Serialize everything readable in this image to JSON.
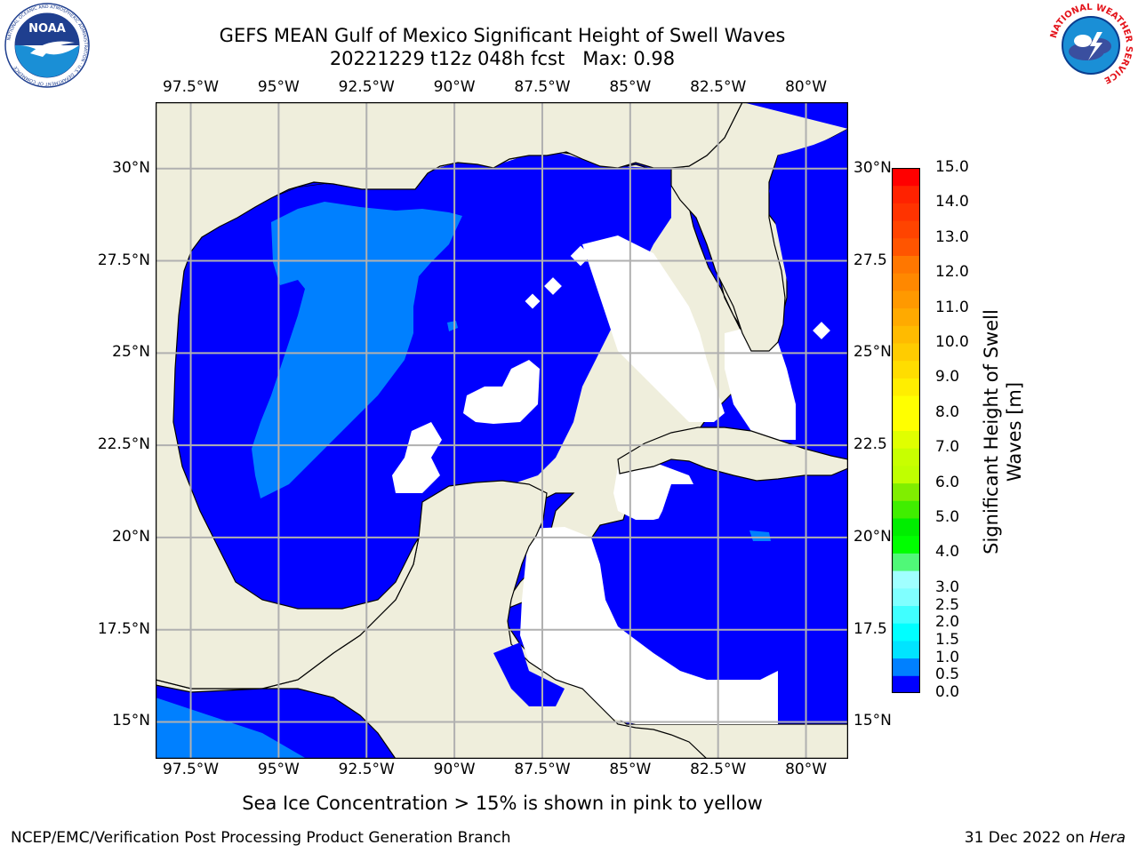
{
  "title_line1": "GEFS MEAN Gulf of Mexico Significant Height of Swell Waves",
  "title_line2": "20221229 t12z 048h fcst   Max: 0.98",
  "note": "Sea Ice Concentration > 15% is shown in pink to yellow",
  "footer_left": "NCEP/EMC/Verification Post Processing Product Generation Branch",
  "footer_date": "31 Dec 2022 on ",
  "footer_host": "Hera",
  "left_logo": {
    "icon": "noaa-logo-icon",
    "text": "NOAA",
    "ring_text": "NATIONAL OCEANIC AND ATMOSPHERIC ADMINISTRATION · U.S. DEPARTMENT OF COMMERCE"
  },
  "right_logo": {
    "icon": "national-weather-service-logo-icon",
    "ring_text": "NATIONAL WEATHER SERVICE"
  },
  "map": {
    "lon_range": [
      -98.5,
      -78.8
    ],
    "lat_range": [
      14.0,
      31.8
    ],
    "lon_ticks": [
      {
        "value": -97.5,
        "label": "97.5°W"
      },
      {
        "value": -95,
        "label": "95°W"
      },
      {
        "value": -92.5,
        "label": "92.5°W"
      },
      {
        "value": -90,
        "label": "90°W"
      },
      {
        "value": -87.5,
        "label": "87.5°W"
      },
      {
        "value": -85,
        "label": "85°W"
      },
      {
        "value": -82.5,
        "label": "82.5°W"
      },
      {
        "value": -80,
        "label": "80°W"
      }
    ],
    "lat_ticks_left": [
      {
        "value": 30,
        "label": "30°N"
      },
      {
        "value": 27.5,
        "label": "27.5°N"
      },
      {
        "value": 25,
        "label": "25°N"
      },
      {
        "value": 22.5,
        "label": "22.5°N"
      },
      {
        "value": 20,
        "label": "20°N"
      },
      {
        "value": 17.5,
        "label": "17.5°N"
      },
      {
        "value": 15,
        "label": "15°N"
      }
    ],
    "lat_ticks_right": [
      {
        "value": 30,
        "label": "30°N"
      },
      {
        "value": 27.5,
        "label": "27.5"
      },
      {
        "value": 25,
        "label": "25°N"
      },
      {
        "value": 22.5,
        "label": "22.5"
      },
      {
        "value": 20,
        "label": "20°N"
      },
      {
        "value": 17.5,
        "label": "17.5"
      },
      {
        "value": 15,
        "label": "15°N"
      }
    ],
    "colors": {
      "land": "#efeedc",
      "ocean_low": "#0000ff",
      "ocean_mid": "#0080ff",
      "no_data": "#ffffff",
      "grid": "#b0b0b0"
    }
  },
  "colorbar": {
    "label_line1": "Significant Height of Swell",
    "label_line2": "Waves [m]",
    "levels": [
      0.0,
      0.5,
      1.0,
      1.5,
      2.0,
      2.5,
      3.0,
      3.5,
      4.0,
      4.5,
      5.0,
      5.5,
      6.0,
      6.5,
      7.0,
      7.5,
      8.0,
      8.5,
      9.0,
      9.5,
      10.0,
      10.5,
      11.0,
      11.5,
      12.0,
      12.5,
      13.0,
      13.5,
      14.0,
      14.5,
      15.0
    ],
    "colors": [
      "#0000ff",
      "#0080ff",
      "#00e4ff",
      "#00ffff",
      "#40ffff",
      "#80ffff",
      "#a0ffff",
      "#50f878",
      "#00ff00",
      "#00ee00",
      "#40ee00",
      "#80ee00",
      "#c0ff00",
      "#c8ff00",
      "#e0ff00",
      "#ffff00",
      "#ffff00",
      "#ffee00",
      "#ffdd00",
      "#ffcc00",
      "#ffbb00",
      "#ffaa00",
      "#ff9900",
      "#ff8800",
      "#ff7700",
      "#ff5500",
      "#ff4400",
      "#ff3300",
      "#ff2200",
      "#ff0000"
    ],
    "tick_labels": [
      {
        "value": 0.0,
        "label": "0.0"
      },
      {
        "value": 0.5,
        "label": "0.5"
      },
      {
        "value": 1.0,
        "label": "1.0"
      },
      {
        "value": 1.5,
        "label": "1.5"
      },
      {
        "value": 2.0,
        "label": "2.0"
      },
      {
        "value": 2.5,
        "label": "2.5"
      },
      {
        "value": 3.0,
        "label": "3.0"
      },
      {
        "value": 4.0,
        "label": "4.0"
      },
      {
        "value": 5.0,
        "label": "5.0"
      },
      {
        "value": 6.0,
        "label": "6.0"
      },
      {
        "value": 7.0,
        "label": "7.0"
      },
      {
        "value": 8.0,
        "label": "8.0"
      },
      {
        "value": 9.0,
        "label": "9.0"
      },
      {
        "value": 10.0,
        "label": "10.0"
      },
      {
        "value": 11.0,
        "label": "11.0"
      },
      {
        "value": 12.0,
        "label": "12.0"
      },
      {
        "value": 13.0,
        "label": "13.0"
      },
      {
        "value": 14.0,
        "label": "14.0"
      },
      {
        "value": 15.0,
        "label": "15.0"
      }
    ]
  }
}
